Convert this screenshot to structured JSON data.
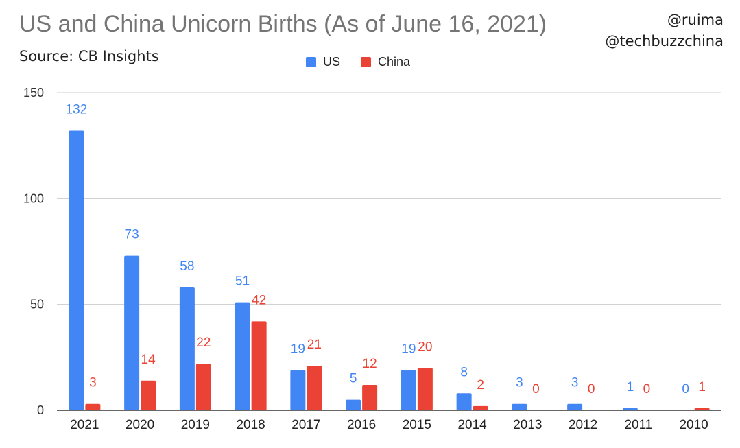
{
  "title": "US and China Unicorn Births (As of June 16, 2021)",
  "source": "Source: CB Insights",
  "handles": [
    "@ruima",
    "@techbuzzchina"
  ],
  "colors": {
    "us": "#4285f4",
    "china": "#ea4335",
    "grid": "#cccccc",
    "axis": "#333333"
  },
  "chart_data": {
    "type": "bar",
    "title": "US and China Unicorn Births (As of June 16, 2021)",
    "categories": [
      "2021",
      "2020",
      "2019",
      "2018",
      "2017",
      "2016",
      "2015",
      "2014",
      "2013",
      "2012",
      "2011",
      "2010"
    ],
    "series": [
      {
        "name": "US",
        "values": [
          132,
          73,
          58,
          51,
          19,
          5,
          19,
          8,
          3,
          3,
          1,
          0
        ]
      },
      {
        "name": "China",
        "values": [
          3,
          14,
          22,
          42,
          21,
          12,
          20,
          2,
          0,
          0,
          0,
          1
        ]
      }
    ],
    "ylim": [
      0,
      150
    ],
    "yticks": [
      0,
      50,
      100,
      150
    ],
    "grid": true,
    "legend": "top-center",
    "data_labels": true
  }
}
